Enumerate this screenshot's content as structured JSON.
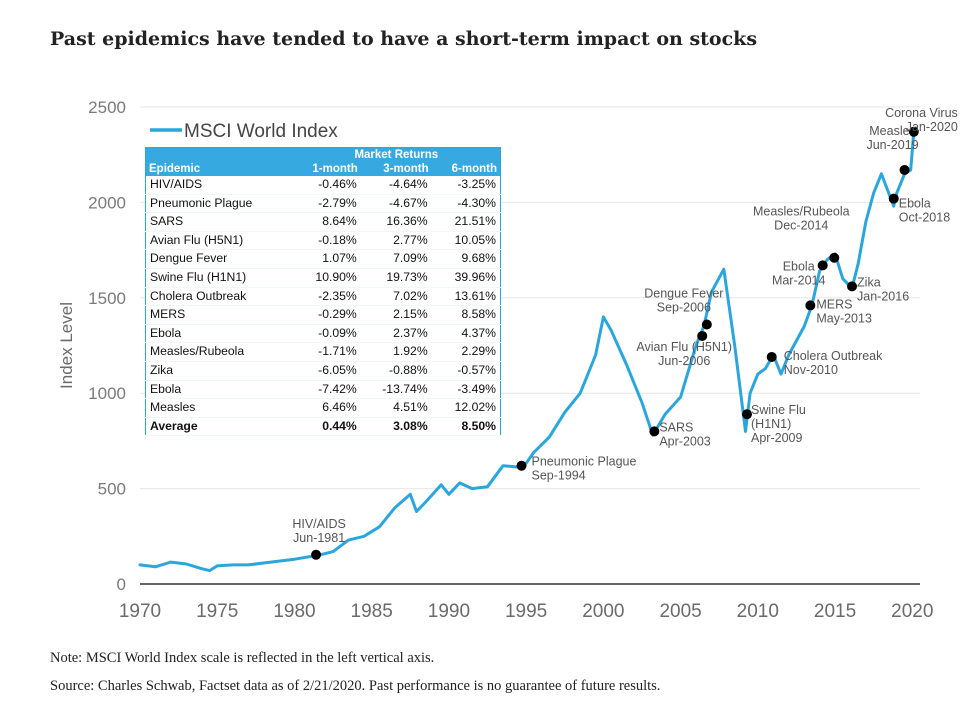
{
  "title": "Past epidemics have tended to have a short-term impact on stocks",
  "notes": [
    "Note: MSCI World Index scale is reflected in the left vertical axis.",
    "Source: Charles Schwab, Factset data as of 2/21/2020. Past performance is no guarantee of future results."
  ],
  "colors": {
    "line": "#2aa6dd",
    "marker": "#000000",
    "table_header": "#36a9e1"
  },
  "table": {
    "group_header": "Market Returns",
    "columns": [
      "Epidemic",
      "1-month",
      "3-month",
      "6-month"
    ],
    "rows": [
      [
        "HIV/AIDS",
        "-0.46%",
        "-4.64%",
        "-3.25%"
      ],
      [
        "Pneumonic Plague",
        "-2.79%",
        "-4.67%",
        "-4.30%"
      ],
      [
        "SARS",
        "8.64%",
        "16.36%",
        "21.51%"
      ],
      [
        "Avian Flu (H5N1)",
        "-0.18%",
        "2.77%",
        "10.05%"
      ],
      [
        "Dengue Fever",
        "1.07%",
        "7.09%",
        "9.68%"
      ],
      [
        "Swine Flu (H1N1)",
        "10.90%",
        "19.73%",
        "39.96%"
      ],
      [
        "Cholera Outbreak",
        "-2.35%",
        "7.02%",
        "13.61%"
      ],
      [
        "MERS",
        "-0.29%",
        "2.15%",
        "8.58%"
      ],
      [
        "Ebola",
        "-0.09%",
        "2.37%",
        "4.37%"
      ],
      [
        "Measles/Rubeola",
        "-1.71%",
        "1.92%",
        "2.29%"
      ],
      [
        "Zika",
        "-6.05%",
        "-0.88%",
        "-0.57%"
      ],
      [
        "Ebola",
        "-7.42%",
        "-13.74%",
        "-3.49%"
      ],
      [
        "Measles",
        "6.46%",
        "4.51%",
        "12.02%"
      ]
    ],
    "average": [
      "Average",
      "0.44%",
      "3.08%",
      "8.50%"
    ]
  },
  "chart_data": {
    "type": "line",
    "title": "Past epidemics have tended to have a short-term impact on stocks",
    "xlabel": "",
    "ylabel": "Index Level",
    "xlim": [
      1970,
      2020.5
    ],
    "ylim": [
      0,
      2500
    ],
    "xticks": [
      1970,
      1975,
      1980,
      1985,
      1990,
      1995,
      2000,
      2005,
      2010,
      2015,
      2020
    ],
    "yticks": [
      0,
      500,
      1000,
      1500,
      2000,
      2500
    ],
    "grid": "horizontal",
    "legend_position": "top-left",
    "series": [
      {
        "name": "MSCI World Index",
        "x": [
          1970,
          1971,
          1972,
          1973,
          1974,
          1974.5,
          1975,
          1976,
          1977,
          1978,
          1979,
          1980,
          1981.5,
          1982.5,
          1983.5,
          1984.5,
          1985.5,
          1986.5,
          1987.5,
          1987.9,
          1988.5,
          1989.5,
          1990,
          1990.7,
          1991.5,
          1992.5,
          1993.5,
          1994.8,
          1995.5,
          1996.5,
          1997.5,
          1998.5,
          1999.5,
          2000,
          2000.5,
          2001.5,
          2002.5,
          2003.2,
          2004,
          2005,
          2006,
          2006.5,
          2007,
          2007.8,
          2008.5,
          2009.2,
          2009.5,
          2010,
          2010.5,
          2011,
          2011.5,
          2012,
          2013,
          2013.5,
          2014,
          2014.5,
          2015,
          2015.5,
          2016.1,
          2016.5,
          2017,
          2017.5,
          2018,
          2018.8,
          2019,
          2019.5,
          2019.9,
          2020.1
        ],
        "values": [
          100,
          90,
          115,
          105,
          80,
          70,
          95,
          100,
          100,
          110,
          120,
          130,
          150,
          170,
          230,
          250,
          300,
          400,
          470,
          380,
          430,
          520,
          470,
          530,
          500,
          510,
          620,
          610,
          690,
          770,
          900,
          1000,
          1200,
          1400,
          1330,
          1150,
          950,
          780,
          890,
          980,
          1250,
          1350,
          1530,
          1650,
          1250,
          800,
          1000,
          1100,
          1130,
          1200,
          1100,
          1200,
          1350,
          1460,
          1640,
          1700,
          1730,
          1600,
          1550,
          1680,
          1900,
          2050,
          2150,
          1980,
          2050,
          2150,
          2170,
          2370
        ]
      }
    ],
    "annotations": [
      {
        "label": [
          "HIV/AIDS",
          "Jun-1981"
        ],
        "x": 1981.4,
        "y": 153,
        "anchor": "middle",
        "dx": 3,
        "dy": -27
      },
      {
        "label": [
          "Pneumonic Plague",
          "Sep-1994"
        ],
        "x": 1994.7,
        "y": 620,
        "anchor": "start",
        "dx": 10,
        "dy": 0
      },
      {
        "label": [
          "SARS",
          "Apr-2003"
        ],
        "x": 2003.3,
        "y": 800,
        "anchor": "start",
        "dx": 5,
        "dy": 0
      },
      {
        "label": [
          "Avian Flu (H5N1)",
          "Jun-2006"
        ],
        "x": 2006.4,
        "y": 1300,
        "anchor": "middle",
        "dx": -18,
        "dy": 15
      },
      {
        "label": [
          "Dengue Fever",
          "Sep-2006"
        ],
        "x": 2006.7,
        "y": 1360,
        "anchor": "middle",
        "dx": -23,
        "dy": -27
      },
      {
        "label": [
          "Swine Flu",
          "(H1N1)",
          "Apr-2009"
        ],
        "x": 2009.3,
        "y": 890,
        "anchor": "start",
        "dx": 4,
        "dy": 0
      },
      {
        "label": [
          "Cholera Outbreak",
          "Nov-2010"
        ],
        "x": 2010.9,
        "y": 1190,
        "anchor": "start",
        "dx": 12,
        "dy": 3
      },
      {
        "label": [
          "MERS",
          "May-2013"
        ],
        "x": 2013.4,
        "y": 1460,
        "anchor": "start",
        "dx": 6,
        "dy": 3
      },
      {
        "label": [
          "Ebola",
          "Mar-2014"
        ],
        "x": 2014.2,
        "y": 1670,
        "anchor": "middle",
        "dx": -24,
        "dy": 5
      },
      {
        "label": [
          "Measles/Rubeola",
          "Dec-2014"
        ],
        "x": 2014.95,
        "y": 1710,
        "anchor": "middle",
        "dx": -33,
        "dy": -42
      },
      {
        "label": [
          "Zika",
          "Jan-2016"
        ],
        "x": 2016.1,
        "y": 1560,
        "anchor": "start",
        "dx": 5,
        "dy": 0
      },
      {
        "label": [
          "Ebola",
          "Oct-2018"
        ],
        "x": 2018.8,
        "y": 2020,
        "anchor": "start",
        "dx": 5,
        "dy": 9
      },
      {
        "label": [
          "Measles",
          "Jun-2019"
        ],
        "x": 2019.5,
        "y": 2170,
        "anchor": "middle",
        "dx": -12,
        "dy": -35
      },
      {
        "label": [
          "Corona Virus",
          "Jan-2020"
        ],
        "x": 2020.1,
        "y": 2370,
        "anchor": "end",
        "dx": 44,
        "dy": -15
      }
    ]
  }
}
